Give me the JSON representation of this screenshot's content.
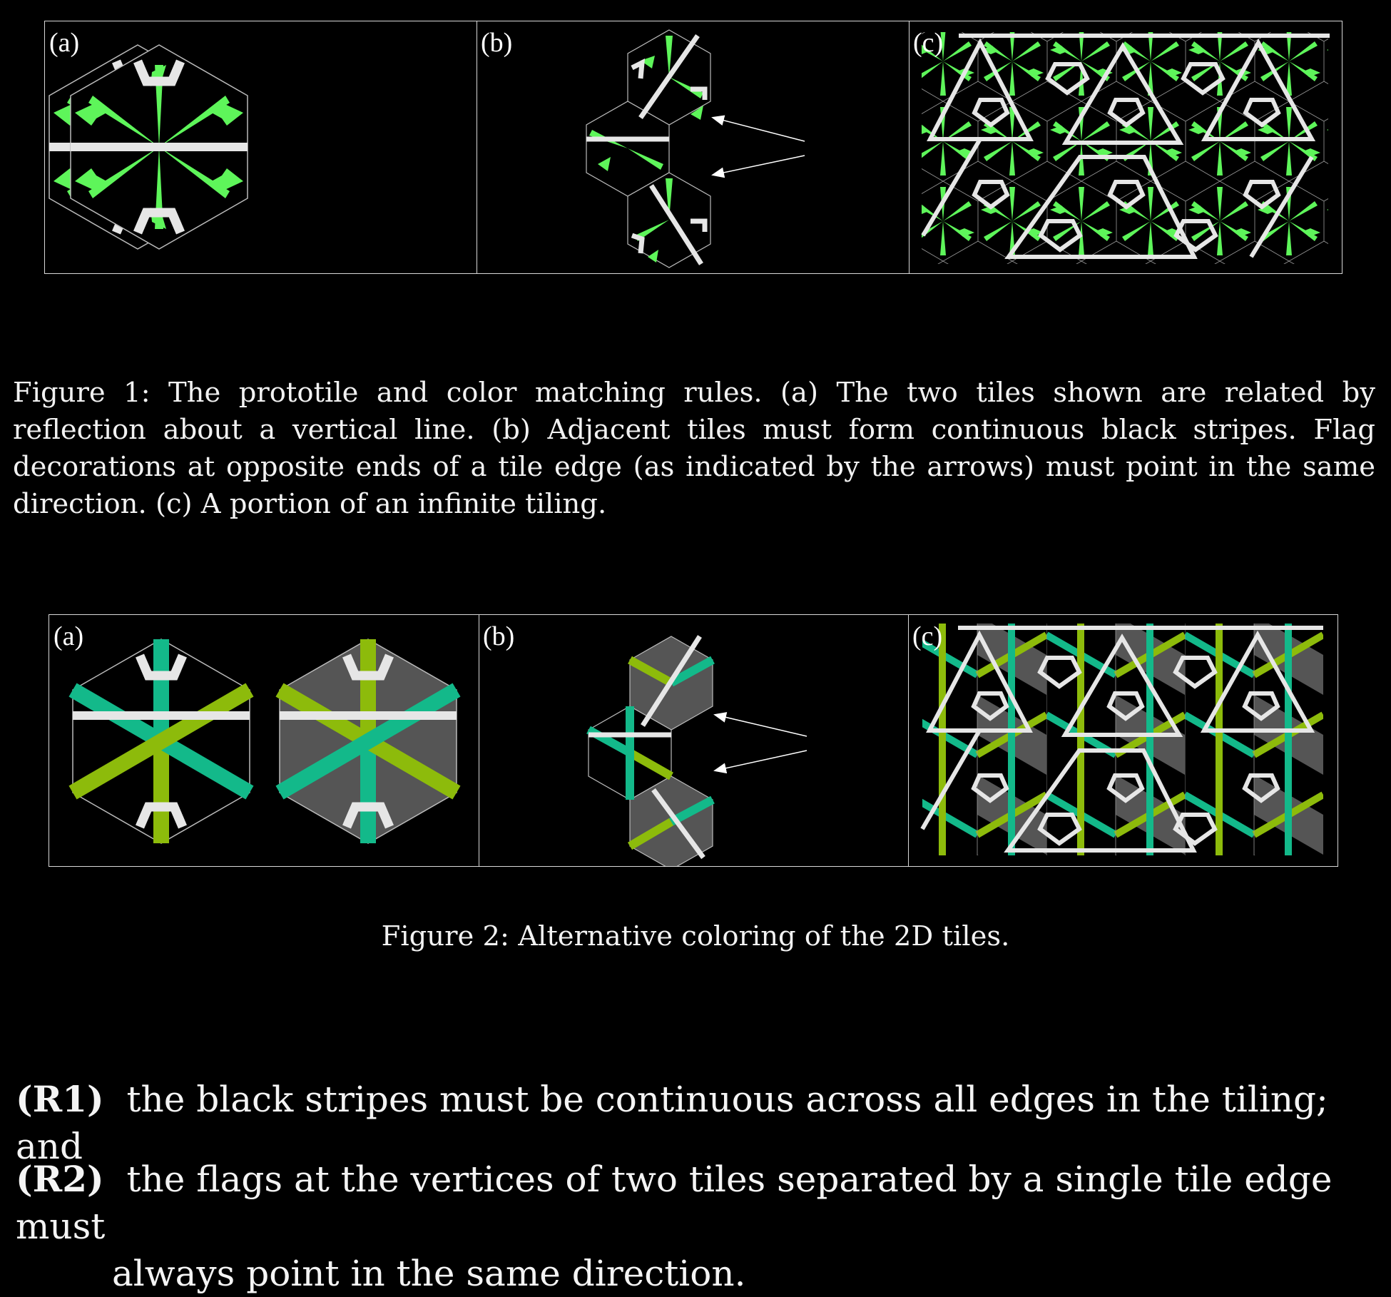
{
  "figure1": {
    "panels": [
      {
        "label": "(a)"
      },
      {
        "label": "(b)"
      },
      {
        "label": "(c)"
      }
    ],
    "caption": "Figure 1:  The prototile and color matching rules.  (a) The two tiles shown are related by reflection about a vertical line.  (b) Adjacent tiles must form continuous black stripes.  Flag decorations at opposite ends of a tile edge (as indicated by the arrows) must point in the same direction.  (c) A portion of an infinite tiling.",
    "colors": {
      "flag": "#5ef55a",
      "stripe": "#e6e6e6",
      "outline": "#bbbbbb"
    }
  },
  "figure2": {
    "panels": [
      {
        "label": "(a)"
      },
      {
        "label": "(b)"
      },
      {
        "label": "(c)"
      }
    ],
    "caption": "Figure 2:  Alternative coloring of the 2D tiles.",
    "colors": {
      "teal": "#13b98a",
      "lime": "#8dbb0b",
      "gray": "#555555",
      "stripe": "#e6e6e6"
    }
  },
  "rules": [
    {
      "tag": "(R1)",
      "text": "the black stripes must be continuous across all edges in the tiling; and"
    },
    {
      "tag": "(R2)",
      "text": "the flags at the vertices of two tiles separated by a single tile edge must",
      "continuation": "always point in the same direction."
    }
  ]
}
